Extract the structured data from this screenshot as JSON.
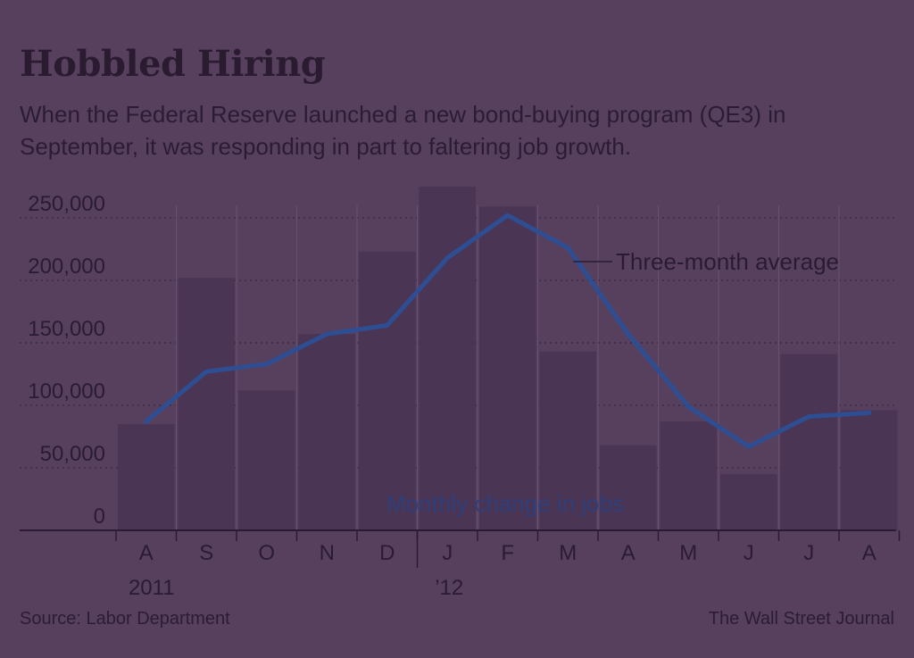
{
  "title": "Hobbled Hiring",
  "subtitle": "When the Federal Reserve launched a new bond-buying program (QE3) in September, it was responding in part to faltering job growth.",
  "source": "Source: Labor Department",
  "credit": "The Wall Street Journal",
  "colors": {
    "background": "#57405e",
    "bar": "#4a3554",
    "line": "#2e4e93",
    "text": "#2a1b33",
    "grid": "#3b2a44"
  },
  "chart_data": {
    "type": "bar",
    "title": "Hobbled Hiring",
    "categories": [
      "A",
      "S",
      "O",
      "N",
      "D",
      "J",
      "F",
      "M",
      "A",
      "M",
      "J",
      "J",
      "A"
    ],
    "year_labels": [
      {
        "index": 0,
        "label": "2011"
      },
      {
        "index": 5,
        "label": "’12"
      }
    ],
    "series": [
      {
        "name": "Monthly change in jobs",
        "type": "bar",
        "values": [
          85000,
          202000,
          112000,
          157000,
          223000,
          275000,
          259000,
          143000,
          68000,
          87000,
          45000,
          141000,
          96000
        ]
      },
      {
        "name": "Three-month average",
        "type": "line",
        "values": [
          87000,
          127000,
          133000,
          157000,
          164000,
          218000,
          252000,
          226000,
          157000,
          99000,
          67000,
          91000,
          94000
        ]
      }
    ],
    "yticks": [
      0,
      50000,
      100000,
      150000,
      200000,
      250000
    ],
    "ytick_labels": [
      "0",
      "50,000",
      "100,000",
      "150,000",
      "200,000",
      "250,000"
    ],
    "ylim": [
      0,
      250000
    ],
    "grid": true,
    "annotations": {
      "bar_label": "Monthly change in jobs",
      "line_label": "Three-month average"
    }
  }
}
